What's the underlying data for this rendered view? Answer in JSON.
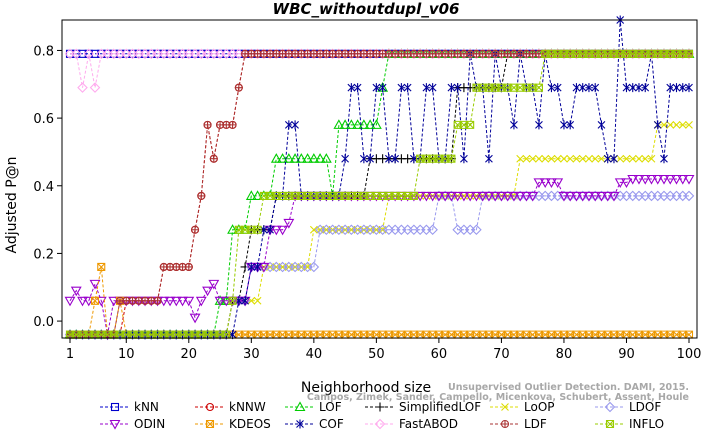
{
  "chart_data": {
    "type": "line",
    "title": "WBC_withoutdupl_v06",
    "xlabel": "Neighborhood size",
    "ylabel": "Adjusted P@n",
    "xlim": [
      0,
      100
    ],
    "ylim": [
      -0.05,
      0.89
    ],
    "x_ticks": [
      1,
      10,
      20,
      30,
      40,
      50,
      60,
      70,
      80,
      90,
      100
    ],
    "y_ticks": [
      0.0,
      0.2,
      0.4,
      0.6,
      0.8
    ],
    "y_tick_labels": [
      "0.0",
      "0.2",
      "0.4",
      "0.6",
      "0.8"
    ],
    "grid": false,
    "legend_position": "bottom",
    "watermark": [
      "Campos, Zimek, Sander, Campello, Micenkova, Schubert, Assent, Houle",
      "Unsupervised Outlier Detection. DAMI, 2015."
    ],
    "series": [
      {
        "name": "kNN",
        "color": "#0000cc",
        "marker": "square",
        "points": [
          [
            1,
            0.79
          ],
          [
            100,
            0.79
          ]
        ]
      },
      {
        "name": "kNNW",
        "color": "#cc0000",
        "marker": "circle",
        "points": [
          [
            1,
            -0.04
          ],
          [
            9,
            -0.04
          ],
          [
            10,
            0.06
          ],
          [
            15,
            0.06
          ],
          [
            16,
            0.16
          ],
          [
            20,
            0.16
          ],
          [
            21,
            0.27
          ],
          [
            22,
            0.37
          ],
          [
            23,
            0.58
          ],
          [
            24,
            0.48
          ],
          [
            25,
            0.58
          ],
          [
            28,
            0.69
          ],
          [
            29,
            0.79
          ],
          [
            100,
            0.79
          ]
        ]
      },
      {
        "name": "LOF",
        "color": "#00cc00",
        "marker": "triangle-up",
        "points": [
          [
            1,
            -0.04
          ],
          [
            24,
            -0.04
          ],
          [
            25,
            0.06
          ],
          [
            27,
            0.27
          ],
          [
            30,
            0.37
          ],
          [
            33,
            0.37
          ],
          [
            34,
            0.48
          ],
          [
            42,
            0.48
          ],
          [
            43,
            0.37
          ],
          [
            44,
            0.58
          ],
          [
            50,
            0.58
          ],
          [
            51,
            0.69
          ],
          [
            52,
            0.79
          ],
          [
            100,
            0.79
          ]
        ]
      },
      {
        "name": "SimplifiedLOF",
        "color": "#000000",
        "marker": "plus",
        "points": [
          [
            1,
            -0.04
          ],
          [
            26,
            -0.04
          ],
          [
            27,
            0.06
          ],
          [
            29,
            0.16
          ],
          [
            30,
            0.27
          ],
          [
            33,
            0.27
          ],
          [
            34,
            0.37
          ],
          [
            48,
            0.37
          ],
          [
            49,
            0.48
          ],
          [
            62,
            0.48
          ],
          [
            63,
            0.69
          ],
          [
            70,
            0.69
          ],
          [
            71,
            0.79
          ],
          [
            100,
            0.79
          ]
        ]
      },
      {
        "name": "LoOP",
        "color": "#dddd00",
        "marker": "cross",
        "points": [
          [
            1,
            -0.04
          ],
          [
            26,
            -0.04
          ],
          [
            27,
            0.06
          ],
          [
            31,
            0.06
          ],
          [
            32,
            0.16
          ],
          [
            39,
            0.16
          ],
          [
            40,
            0.27
          ],
          [
            50,
            0.27
          ],
          [
            52,
            0.37
          ],
          [
            72,
            0.37
          ],
          [
            73,
            0.48
          ],
          [
            94,
            0.48
          ],
          [
            95,
            0.58
          ],
          [
            100,
            0.58
          ]
        ]
      },
      {
        "name": "LDOF",
        "color": "#9999ee",
        "marker": "diamond",
        "points": [
          [
            1,
            -0.04
          ],
          [
            26,
            -0.04
          ],
          [
            27,
            0.06
          ],
          [
            30,
            0.16
          ],
          [
            40,
            0.16
          ],
          [
            41,
            0.27
          ],
          [
            50,
            0.27
          ],
          [
            51,
            0.27
          ],
          [
            59,
            0.27
          ],
          [
            60,
            0.37
          ],
          [
            62,
            0.37
          ],
          [
            63,
            0.27
          ],
          [
            66,
            0.27
          ],
          [
            67,
            0.37
          ],
          [
            100,
            0.37
          ]
        ]
      },
      {
        "name": "ODIN",
        "color": "#9900cc",
        "marker": "triangle-down",
        "points": [
          [
            1,
            0.06
          ],
          [
            2,
            0.09
          ],
          [
            3,
            0.06
          ],
          [
            4,
            0.06
          ],
          [
            5,
            0.11
          ],
          [
            6,
            0.06
          ],
          [
            7,
            -0.04
          ],
          [
            8,
            0.06
          ],
          [
            10,
            0.06
          ],
          [
            20,
            0.06
          ],
          [
            21,
            0.01
          ],
          [
            22,
            0.06
          ],
          [
            23,
            0.09
          ],
          [
            24,
            0.11
          ],
          [
            25,
            0.06
          ],
          [
            30,
            0.16
          ],
          [
            33,
            0.27
          ],
          [
            36,
            0.29
          ],
          [
            37,
            0.37
          ],
          [
            75,
            0.37
          ],
          [
            76,
            0.41
          ],
          [
            79,
            0.41
          ],
          [
            80,
            0.37
          ],
          [
            88,
            0.37
          ],
          [
            89,
            0.41
          ],
          [
            91,
            0.42
          ],
          [
            100,
            0.42
          ]
        ]
      },
      {
        "name": "KDEOS",
        "color": "#ee9900",
        "marker": "square-x",
        "points": [
          [
            1,
            -0.04
          ],
          [
            4,
            -0.04
          ],
          [
            5,
            0.06
          ],
          [
            6,
            0.16
          ],
          [
            7,
            -0.04
          ],
          [
            9,
            0.06
          ],
          [
            10,
            -0.04
          ],
          [
            100,
            -0.04
          ]
        ]
      },
      {
        "name": "COF",
        "color": "#000099",
        "marker": "asterisk",
        "points": [
          [
            1,
            -0.04
          ],
          [
            27,
            -0.04
          ],
          [
            28,
            0.06
          ],
          [
            30,
            0.16
          ],
          [
            32,
            0.27
          ],
          [
            34,
            0.37
          ],
          [
            36,
            0.58
          ],
          [
            38,
            0.37
          ],
          [
            45,
            0.48
          ],
          [
            46,
            0.69
          ],
          [
            48,
            0.48
          ],
          [
            50,
            0.69
          ],
          [
            52,
            0.48
          ],
          [
            54,
            0.69
          ],
          [
            56,
            0.48
          ],
          [
            58,
            0.69
          ],
          [
            60,
            0.48
          ],
          [
            62,
            0.69
          ],
          [
            64,
            0.48
          ],
          [
            65,
            0.79
          ],
          [
            66,
            0.69
          ],
          [
            68,
            0.48
          ],
          [
            69,
            0.79
          ],
          [
            70,
            0.69
          ],
          [
            72,
            0.58
          ],
          [
            73,
            0.79
          ],
          [
            74,
            0.69
          ],
          [
            76,
            0.58
          ],
          [
            77,
            0.79
          ],
          [
            78,
            0.69
          ],
          [
            80,
            0.58
          ],
          [
            82,
            0.69
          ],
          [
            84,
            0.69
          ],
          [
            86,
            0.58
          ],
          [
            87,
            0.48
          ],
          [
            89,
            0.89
          ],
          [
            90,
            0.69
          ],
          [
            92,
            0.69
          ],
          [
            93,
            0.69
          ],
          [
            94,
            0.79
          ],
          [
            95,
            0.58
          ],
          [
            96,
            0.48
          ],
          [
            97,
            0.69
          ],
          [
            98,
            0.69
          ],
          [
            100,
            0.69
          ]
        ]
      },
      {
        "name": "FastABOD",
        "color": "#ffaaee",
        "marker": "diamond",
        "points": [
          [
            1,
            0.79
          ],
          [
            2,
            0.79
          ],
          [
            3,
            0.69
          ],
          [
            4,
            0.79
          ],
          [
            5,
            0.69
          ],
          [
            6,
            0.79
          ],
          [
            100,
            0.79
          ]
        ]
      },
      {
        "name": "LDF",
        "color": "#aa3333",
        "marker": "circle-plus",
        "points": [
          [
            1,
            -0.04
          ],
          [
            8,
            -0.04
          ],
          [
            9,
            0.06
          ],
          [
            15,
            0.06
          ],
          [
            16,
            0.16
          ],
          [
            20,
            0.16
          ],
          [
            21,
            0.27
          ],
          [
            22,
            0.37
          ],
          [
            23,
            0.58
          ],
          [
            24,
            0.48
          ],
          [
            25,
            0.58
          ],
          [
            28,
            0.69
          ],
          [
            29,
            0.79
          ],
          [
            100,
            0.79
          ]
        ]
      },
      {
        "name": "INFLO",
        "color": "#99cc00",
        "marker": "square-x",
        "points": [
          [
            1,
            -0.04
          ],
          [
            26,
            -0.04
          ],
          [
            27,
            0.06
          ],
          [
            28,
            0.27
          ],
          [
            31,
            0.27
          ],
          [
            32,
            0.37
          ],
          [
            56,
            0.37
          ],
          [
            57,
            0.48
          ],
          [
            63,
            0.58
          ],
          [
            65,
            0.58
          ],
          [
            66,
            0.69
          ],
          [
            72,
            0.69
          ],
          [
            73,
            0.69
          ],
          [
            75,
            0.69
          ],
          [
            77,
            0.79
          ],
          [
            100,
            0.79
          ]
        ]
      }
    ]
  }
}
